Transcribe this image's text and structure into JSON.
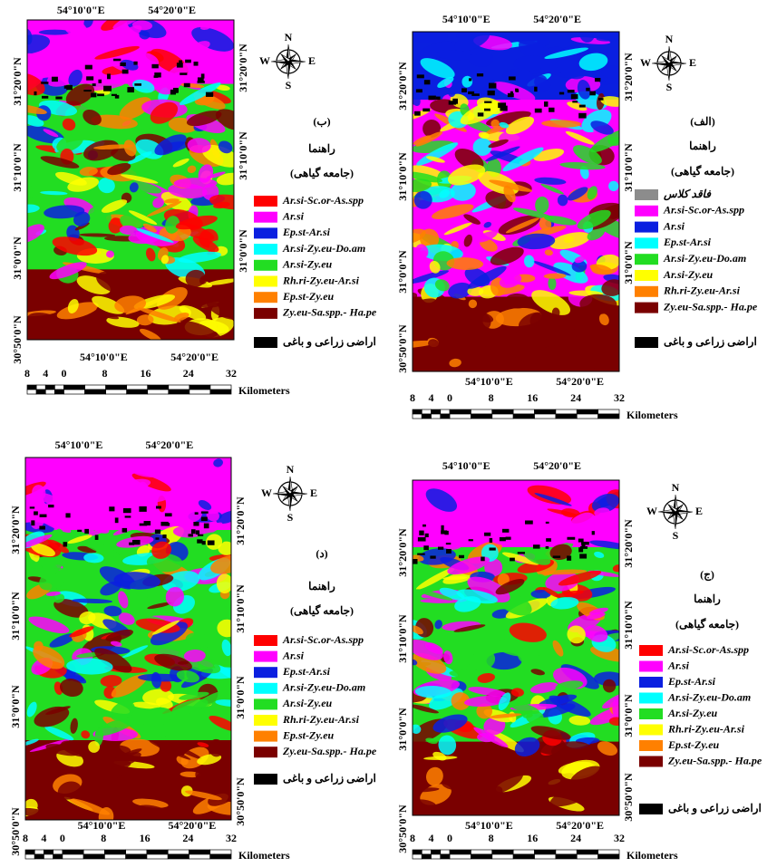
{
  "compass": {
    "n": "N",
    "s": "S",
    "e": "E",
    "w": "W"
  },
  "legend_title": "راهنما",
  "legend_subtitle": "(جامعه گیاهی)",
  "lon_ticks": [
    "54°10'0\"E",
    "54°20'0\"E"
  ],
  "scale": {
    "labels": [
      8,
      4,
      0,
      8,
      16,
      24,
      32
    ],
    "unit": "Kilometers"
  },
  "farmland": {
    "name": "اراضی زراعی و باغی",
    "color": "#000000"
  },
  "legend_main": [
    {
      "name": "Ar.si-Sc.or-As.spp",
      "color": "#ff0000"
    },
    {
      "name": "Ar.si",
      "color": "#ff00ff"
    },
    {
      "name": "Ep.st-Ar.si",
      "color": "#0a1fe0"
    },
    {
      "name": "Ar.si-Zy.eu-Do.am",
      "color": "#00ffff"
    },
    {
      "name": "Ar.si-Zy.eu",
      "color": "#22dd22"
    },
    {
      "name": "Rh.ri-Zy.eu-Ar.si",
      "color": "#ffff00"
    },
    {
      "name": "Ep.st-Zy.eu",
      "color": "#ff8000"
    },
    {
      "name": "Zy.eu-Sa.spp.- Ha.pe",
      "color": "#7a0000"
    }
  ],
  "legend_alef": [
    {
      "name": "فاقد کلاس",
      "color": "#8c8c8c"
    },
    {
      "name": "Ar.si-Sc.or-As.spp",
      "color": "#ff00ff"
    },
    {
      "name": "Ar.si",
      "color": "#0a1fe0"
    },
    {
      "name": "Ep.st-Ar.si",
      "color": "#00ffff"
    },
    {
      "name": "Ar.si-Zy.eu-Do.am",
      "color": "#22dd22"
    },
    {
      "name": "Ar.si-Zy.eu",
      "color": "#ffff00"
    },
    {
      "name": "Rh.ri-Zy.eu-Ar.si",
      "color": "#ff8000"
    },
    {
      "name": "Zy.eu-Sa.spp.- Ha.pe",
      "color": "#7a0000"
    }
  ],
  "panels": [
    {
      "label": "(ب)",
      "legend": "legend_main",
      "lat_left": [
        "31°20'0\"N",
        "31°10'0\"N",
        "31°0'0\"N",
        "30°50'0\"N"
      ],
      "lat_right": [
        "31°20'0\"N",
        "31°10'0\"N",
        "31°0'0\"N"
      ]
    },
    {
      "label": "(الف)",
      "legend": "legend_alef",
      "lat_left": [
        "31°20'0\"N",
        "31°10'0\"N",
        "31°0'0\"N",
        "30°50'0\"N"
      ],
      "lat_right": [
        "31°20'0\"N",
        "31°10'0\"N",
        "31°0'0\"N"
      ]
    },
    {
      "label": "(د)",
      "legend": "legend_main",
      "lat_left": [
        "31°20'0\"N",
        "31°10'0\"N",
        "31°0'0\"N",
        "30°50'0\"N"
      ],
      "lat_right": [
        "31°20'0\"N",
        "31°10'0\"N",
        "31°0'0\"N",
        "30°50'0\"N"
      ]
    },
    {
      "label": "(ج)",
      "legend": "legend_main",
      "lat_left": [
        "31°20'0\"N",
        "31°10'0\"N",
        "31°0'0\"N",
        "30°50'0\"N"
      ],
      "lat_right": [
        "31°20'0\"N",
        "31°10'0\"N",
        "31°0'0\"N",
        "30°50'0\"N"
      ]
    }
  ]
}
